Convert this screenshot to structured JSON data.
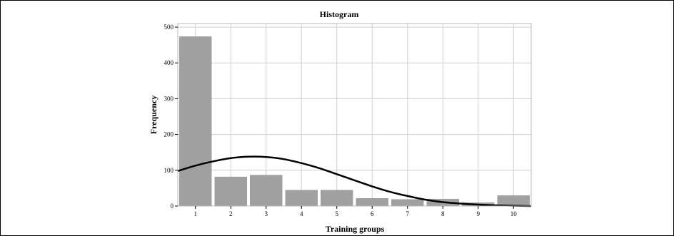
{
  "chart_data": {
    "type": "bar",
    "title": "Histogram",
    "xlabel": "Training groups",
    "ylabel": "Frequency",
    "categories": [
      "1",
      "2",
      "3",
      "4",
      "5",
      "6",
      "7",
      "8",
      "9",
      "10"
    ],
    "values": [
      474,
      82,
      87,
      45,
      45,
      22,
      19,
      20,
      10,
      30
    ],
    "ylim": [
      0,
      510
    ],
    "yticks": [
      "0",
      "100",
      "200",
      "300",
      "400",
      "500"
    ],
    "grid": true,
    "bar_color": "#a0a0a0",
    "curve_color": "#000000",
    "normal_curve": {
      "x": [
        0.5,
        1.0,
        1.5,
        2.0,
        2.5,
        3.0,
        3.5,
        4.0,
        4.5,
        5.0,
        5.5,
        6.0,
        6.5,
        7.0,
        7.5,
        8.0,
        8.5,
        9.0,
        9.5,
        10.0,
        10.5
      ],
      "y": [
        98,
        113,
        125,
        134,
        138,
        137,
        131,
        120,
        106,
        89,
        72,
        55,
        40,
        28,
        18,
        11,
        7,
        4,
        2,
        1,
        0
      ]
    }
  }
}
